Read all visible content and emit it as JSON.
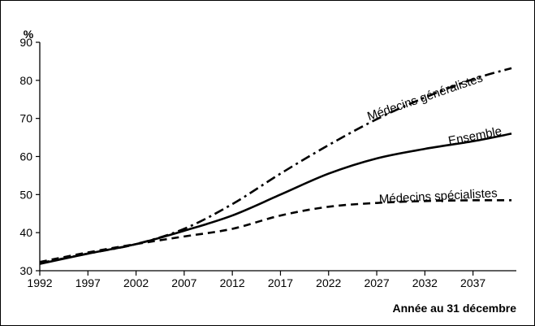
{
  "chart_data": {
    "type": "line",
    "title": "",
    "xlabel": "Année au 31 décembre",
    "ylabel": "%",
    "xlim": [
      1992,
      2041.5
    ],
    "ylim": [
      30,
      90
    ],
    "x_ticks": [
      1992,
      1997,
      2002,
      2007,
      2012,
      2017,
      2022,
      2027,
      2032,
      2037
    ],
    "y_ticks": [
      30,
      40,
      50,
      60,
      70,
      80,
      90
    ],
    "grid": false,
    "legend": "none (direct labels on lines)",
    "x": [
      1992,
      1997,
      2002,
      2007,
      2012,
      2017,
      2022,
      2027,
      2032,
      2037,
      2041
    ],
    "series": [
      {
        "name": "Médecins généralistes",
        "style": "dash-dot",
        "values": [
          32.0,
          34.5,
          37.0,
          41.0,
          47.5,
          55.5,
          63.0,
          69.8,
          75.5,
          80.3,
          83.2
        ]
      },
      {
        "name": "Ensemble",
        "style": "solid",
        "values": [
          31.8,
          34.5,
          37.0,
          40.5,
          44.5,
          50.0,
          55.5,
          59.5,
          62.0,
          64.0,
          66.0
        ]
      },
      {
        "name": "Médecins spécialistes",
        "style": "dashed",
        "values": [
          32.3,
          34.8,
          37.0,
          39.0,
          41.0,
          44.5,
          46.8,
          47.8,
          48.3,
          48.5,
          48.5
        ]
      }
    ]
  }
}
